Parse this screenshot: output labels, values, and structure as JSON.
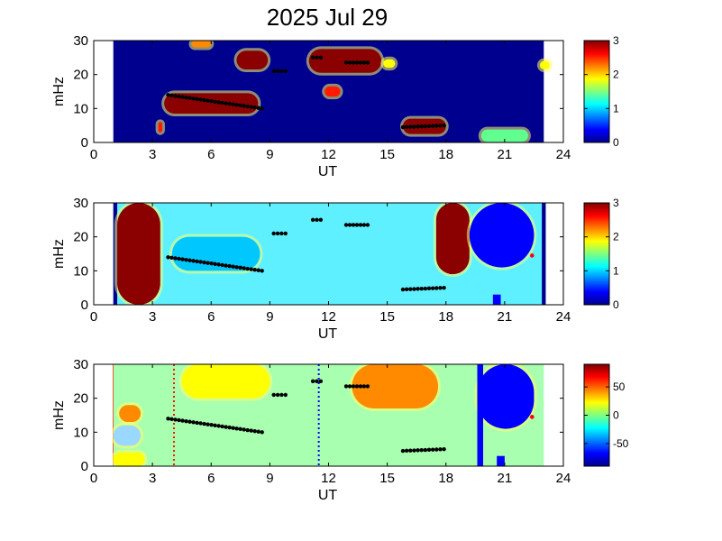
{
  "figure_title": "2025 Jul 29",
  "colors": {
    "dark_blue": "#00008f",
    "blue": "#0000ff",
    "cyan": "#00c8ff",
    "light_cyan": "#5ff0ff",
    "green": "#60ff90",
    "yellow": "#ffff00",
    "orange": "#ff8a00",
    "red": "#ff1a00",
    "dark_red": "#8b0000",
    "pale_green": "#a8ffb0",
    "light_blue": "#9ad8ff"
  },
  "chart_data": [
    {
      "type": "heatmap",
      "title": "",
      "xlabel": "UT",
      "ylabel": "mHz",
      "xlim": [
        0,
        24
      ],
      "ylim": [
        0,
        30
      ],
      "xticks": [
        "0",
        "3",
        "6",
        "9",
        "12",
        "15",
        "18",
        "21",
        "24"
      ],
      "yticks": [
        "0",
        "10",
        "20",
        "30"
      ],
      "colorbar": {
        "range": [
          0,
          3
        ],
        "ticks": [
          "0",
          "1",
          "2",
          "3"
        ]
      },
      "background": "dark_blue",
      "data_extent": [
        1.0,
        23.0
      ],
      "features": [
        {
          "shape": "blob",
          "x": [
            3.6,
            8.4
          ],
          "y": [
            8.5,
            14.5
          ],
          "color": "dark_red"
        },
        {
          "shape": "blob",
          "x": [
            11.0,
            14.7
          ],
          "y": [
            20.5,
            27.5
          ],
          "color": "dark_red"
        },
        {
          "shape": "blob",
          "x": [
            7.3,
            8.9
          ],
          "y": [
            21.5,
            27.0
          ],
          "color": "dark_red"
        },
        {
          "shape": "blob",
          "x": [
            15.8,
            18.0
          ],
          "y": [
            2.5,
            7.0
          ],
          "color": "dark_red"
        },
        {
          "shape": "blob",
          "x": [
            11.8,
            12.6
          ],
          "y": [
            13.5,
            16.5
          ],
          "color": "red"
        },
        {
          "shape": "blob",
          "x": [
            14.8,
            15.4
          ],
          "y": [
            22.0,
            24.5
          ],
          "color": "yellow"
        },
        {
          "shape": "blob",
          "x": [
            5.0,
            6.0
          ],
          "y": [
            28.0,
            30.0
          ],
          "color": "orange"
        },
        {
          "shape": "blob",
          "x": [
            19.8,
            22.2
          ],
          "y": [
            0.2,
            3.8
          ],
          "color": "green"
        },
        {
          "shape": "blob",
          "x": [
            22.8,
            23.3
          ],
          "y": [
            21.5,
            24.0
          ],
          "color": "yellow"
        },
        {
          "shape": "blob",
          "x": [
            3.3,
            3.5
          ],
          "y": [
            3.0,
            6.0
          ],
          "color": "red"
        }
      ],
      "markers": [
        {
          "x": [
            3.8,
            8.6
          ],
          "y": [
            14.0,
            10.0
          ],
          "color": "#000000"
        },
        {
          "x": [
            9.2,
            9.8
          ],
          "y": [
            21.0,
            21.0
          ],
          "color": "#000000"
        },
        {
          "x": [
            11.2,
            11.6
          ],
          "y": [
            25.0,
            25.0
          ],
          "color": "#000000"
        },
        {
          "x": [
            12.9,
            14.0
          ],
          "y": [
            23.5,
            23.5
          ],
          "color": "#000000"
        },
        {
          "x": [
            15.8,
            17.9
          ],
          "y": [
            4.5,
            5.0
          ],
          "color": "#000000"
        }
      ]
    },
    {
      "type": "heatmap",
      "title": "",
      "xlabel": "UT",
      "ylabel": "mHz",
      "xlim": [
        0,
        24
      ],
      "ylim": [
        0,
        30
      ],
      "xticks": [
        "0",
        "3",
        "6",
        "9",
        "12",
        "15",
        "18",
        "21",
        "24"
      ],
      "yticks": [
        "0",
        "10",
        "20",
        "30"
      ],
      "colorbar": {
        "range": [
          0,
          3
        ],
        "ticks": [
          "0",
          "1",
          "2",
          "3"
        ]
      },
      "background": "light_cyan",
      "data_extent": [
        1.0,
        23.0
      ],
      "features": [
        {
          "shape": "rect",
          "x": [
            1.0,
            1.2
          ],
          "y": [
            0,
            30
          ],
          "color": "dark_blue"
        },
        {
          "shape": "blob",
          "x": [
            1.2,
            3.4
          ],
          "y": [
            0,
            30
          ],
          "color": "dark_red"
        },
        {
          "shape": "blob",
          "x": [
            17.5,
            19.2
          ],
          "y": [
            9.0,
            30.0
          ],
          "color": "dark_red"
        },
        {
          "shape": "blob",
          "x": [
            19.2,
            22.5
          ],
          "y": [
            11.0,
            30.0
          ],
          "color": "blue"
        },
        {
          "shape": "rect",
          "x": [
            20.4,
            20.8
          ],
          "y": [
            0,
            3.0
          ],
          "color": "blue"
        },
        {
          "shape": "rect",
          "x": [
            22.9,
            23.1
          ],
          "y": [
            0,
            30
          ],
          "color": "dark_blue"
        },
        {
          "shape": "blob",
          "x": [
            4.0,
            8.5
          ],
          "y": [
            10.0,
            20.0
          ],
          "color": "cyan"
        }
      ],
      "markers": [
        {
          "x": [
            3.8,
            8.6
          ],
          "y": [
            14.0,
            10.0
          ],
          "color": "#000000"
        },
        {
          "x": [
            9.2,
            9.8
          ],
          "y": [
            21.0,
            21.0
          ],
          "color": "#000000"
        },
        {
          "x": [
            11.2,
            11.6
          ],
          "y": [
            25.0,
            25.0
          ],
          "color": "#000000"
        },
        {
          "x": [
            12.9,
            14.0
          ],
          "y": [
            23.5,
            23.5
          ],
          "color": "#000000"
        },
        {
          "x": [
            15.8,
            17.9
          ],
          "y": [
            4.5,
            5.0
          ],
          "color": "#000000"
        },
        {
          "x": [
            22.4,
            22.4
          ],
          "y": [
            14.5,
            14.5
          ],
          "color": "#ff0000"
        }
      ]
    },
    {
      "type": "heatmap",
      "title": "",
      "xlabel": "UT",
      "ylabel": "mHz",
      "xlim": [
        0,
        24
      ],
      "ylim": [
        0,
        30
      ],
      "xticks": [
        "0",
        "3",
        "6",
        "9",
        "12",
        "15",
        "18",
        "21",
        "24"
      ],
      "yticks": [
        "0",
        "10",
        "20",
        "30"
      ],
      "colorbar": {
        "range": [
          -90,
          90
        ],
        "ticks": [
          "-50",
          "0",
          "50"
        ]
      },
      "background": "pale_green",
      "data_extent": [
        0.8,
        23.0
      ],
      "features": [
        {
          "shape": "rect",
          "x": [
            0.8,
            1.0
          ],
          "y": [
            0,
            30
          ],
          "color": "red"
        },
        {
          "shape": "blob",
          "x": [
            13.2,
            17.6
          ],
          "y": [
            17.0,
            30.0
          ],
          "color": "orange"
        },
        {
          "shape": "blob",
          "x": [
            4.5,
            9.0
          ],
          "y": [
            20.0,
            30.0
          ],
          "color": "yellow"
        },
        {
          "shape": "blob",
          "x": [
            1.3,
            2.4
          ],
          "y": [
            13.0,
            18.0
          ],
          "color": "orange"
        },
        {
          "shape": "blob",
          "x": [
            1.0,
            2.4
          ],
          "y": [
            6.0,
            12.0
          ],
          "color": "light_blue"
        },
        {
          "shape": "blob",
          "x": [
            19.6,
            22.5
          ],
          "y": [
            11.0,
            30.0
          ],
          "color": "blue"
        },
        {
          "shape": "rect",
          "x": [
            19.6,
            19.9
          ],
          "y": [
            0,
            30
          ],
          "color": "blue"
        },
        {
          "shape": "rect",
          "x": [
            20.6,
            21.0
          ],
          "y": [
            0,
            3.0
          ],
          "color": "blue"
        },
        {
          "shape": "blob",
          "x": [
            1.0,
            2.6
          ],
          "y": [
            0,
            4.0
          ],
          "color": "yellow"
        }
      ],
      "vlines": [
        {
          "x": 4.1,
          "color": "red",
          "style": "dotted"
        },
        {
          "x": 11.5,
          "color": "blue",
          "style": "dotted"
        }
      ],
      "markers": [
        {
          "x": [
            3.8,
            8.6
          ],
          "y": [
            14.0,
            10.0
          ],
          "color": "#000000"
        },
        {
          "x": [
            9.2,
            9.8
          ],
          "y": [
            21.0,
            21.0
          ],
          "color": "#000000"
        },
        {
          "x": [
            11.2,
            11.6
          ],
          "y": [
            25.0,
            25.0
          ],
          "color": "#000000"
        },
        {
          "x": [
            12.9,
            14.0
          ],
          "y": [
            23.5,
            23.5
          ],
          "color": "#000000"
        },
        {
          "x": [
            15.8,
            17.9
          ],
          "y": [
            4.5,
            5.0
          ],
          "color": "#000000"
        },
        {
          "x": [
            22.4,
            22.4
          ],
          "y": [
            14.5,
            14.5
          ],
          "color": "#ff0000"
        }
      ]
    }
  ]
}
